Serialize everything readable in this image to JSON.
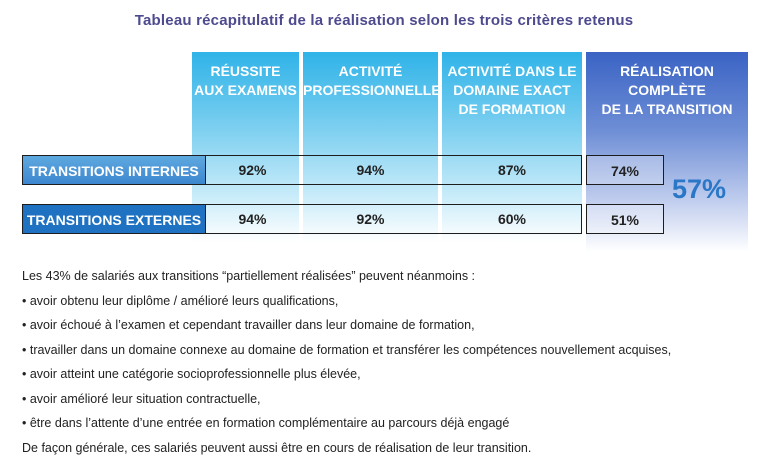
{
  "title": "Tableau récapitulatif de la réalisation selon les trois critères retenus",
  "columns": [
    "RÉUSSITE\nAUX EXAMENS",
    "ACTIVITÉ\nPROFESSIONNELLE",
    "ACTIVITÉ DANS LE\nDOMAINE EXACT\nDE FORMATION",
    "RÉALISATION\nCOMPLÈTE\nDE LA TRANSITION"
  ],
  "rows": [
    {
      "label": "TRANSITIONS INTERNES",
      "values": [
        "92%",
        "94%",
        "87%",
        "74%"
      ]
    },
    {
      "label": "TRANSITIONS EXTERNES",
      "values": [
        "94%",
        "92%",
        "60%",
        "51%"
      ]
    }
  ],
  "total": "57%",
  "notes": {
    "intro": "Les 43% de salariés aux transitions “partiellement réalisées” peuvent néanmoins :",
    "items": [
      "• avoir obtenu leur diplôme / amélioré leurs qualifications,",
      "• avoir échoué à l’examen et cependant travailler dans leur domaine de formation,",
      "• travailler dans un domaine connexe au domaine de formation et transférer les compétences nouvellement acquises,",
      "• avoir atteint une catégorie socioprofessionnelle plus élevée,",
      "• avoir amélioré leur situation contractuelle,",
      "• être dans l’attente d’une entrée en formation complémentaire au parcours déjà engagé"
    ],
    "outro": "De façon générale, ces salariés peuvent aussi être en cours de réalisation de leur transition."
  }
}
